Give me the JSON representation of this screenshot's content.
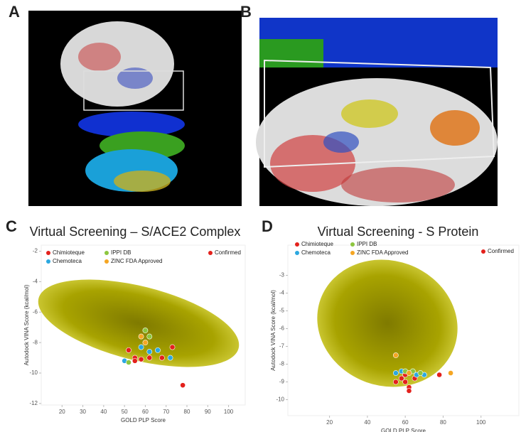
{
  "panel_labels": [
    "A",
    "B",
    "C",
    "D"
  ],
  "chart_data": [
    {
      "type": "scatter",
      "title": "Virtual Screening – S/ACE2 Complex",
      "x_label": "GOLD PLP Score",
      "y_label": "Autodock VINA Score (kcal/mol)",
      "xlim": [
        10,
        108
      ],
      "ylim": [
        -12.1,
        -1.6
      ],
      "xticks": [
        20,
        30,
        40,
        50,
        60,
        70,
        80,
        90,
        100
      ],
      "yticks": [
        -2,
        -4,
        -6,
        -8,
        -10,
        -12
      ],
      "series": [
        {
          "name": "Chimioteque",
          "color": "#e3211c",
          "x": [
            52,
            55,
            58,
            62,
            68,
            73,
            55
          ],
          "values": [
            -8.5,
            -9.0,
            -9.1,
            -9.0,
            -9.0,
            -8.3,
            -9.2
          ]
        },
        {
          "name": "Chemoteca",
          "color": "#2ca8e0",
          "x": [
            58,
            62,
            66,
            72,
            50
          ],
          "values": [
            -8.3,
            -8.6,
            -8.5,
            -9.0,
            -9.2
          ]
        },
        {
          "name": "IPPI DB",
          "color": "#8dc63f",
          "x": [
            60,
            62,
            52
          ],
          "values": [
            -7.2,
            -7.6,
            -9.3
          ]
        },
        {
          "name": "ZINC FDA Approved",
          "color": "#f5a623",
          "x": [
            60,
            58
          ],
          "values": [
            -8.0,
            -7.6
          ]
        },
        {
          "name": "Confirmed",
          "color": "#e3211c",
          "x": [
            78
          ],
          "values": [
            -10.8
          ]
        }
      ]
    },
    {
      "type": "scatter",
      "title": "Virtual Screening - S Protein",
      "x_label": "GOLD PLP Score",
      "y_label": "Autodock VINA Score (kcal/mol)",
      "xlim": [
        -2,
        120
      ],
      "ylim": [
        -10.9,
        -1.3
      ],
      "xticks": [
        20,
        40,
        60,
        80,
        100
      ],
      "yticks": [
        -3,
        -4,
        -5,
        -6,
        -7,
        -8,
        -9,
        -10
      ],
      "series": [
        {
          "name": "Chimioteque",
          "color": "#e3211c",
          "x": [
            55,
            58,
            60,
            62,
            65,
            78,
            60
          ],
          "values": [
            -9.0,
            -8.8,
            -9.0,
            -9.3,
            -8.8,
            -8.6,
            -8.6
          ]
        },
        {
          "name": "Chemoteca",
          "color": "#2ca8e0",
          "x": [
            55,
            58,
            66,
            70
          ],
          "values": [
            -8.5,
            -8.4,
            -8.6,
            -8.6
          ]
        },
        {
          "name": "IPPI DB",
          "color": "#8dc63f",
          "x": [
            60,
            64,
            68
          ],
          "values": [
            -8.4,
            -8.4,
            -8.5
          ]
        },
        {
          "name": "ZINC FDA Approved",
          "color": "#f5a623",
          "x": [
            55,
            84,
            62
          ],
          "values": [
            -7.5,
            -8.5,
            -8.5
          ]
        },
        {
          "name": "Confirmed",
          "color": "#e3211c",
          "x": [
            62
          ],
          "values": [
            -9.5
          ]
        }
      ]
    }
  ]
}
